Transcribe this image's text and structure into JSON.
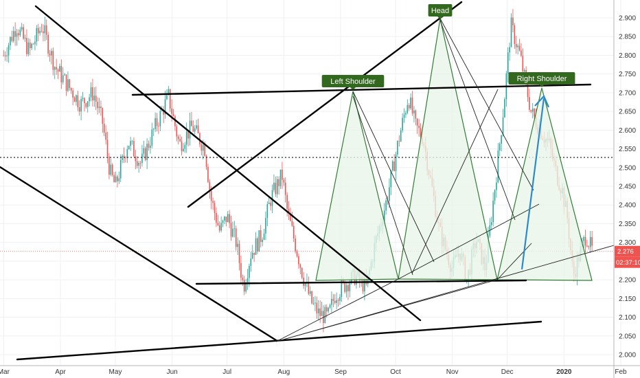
{
  "chart_data": {
    "type": "candlestick",
    "ticker_scale": "price",
    "colors": {
      "up": "#26a69a",
      "down": "#ef5350",
      "pattern_fill": "#e8f5e9",
      "pattern_stroke": "#2e7d32",
      "label_bg": "#33691e",
      "arrow": "#2a8ac9",
      "trendline": "#000000",
      "price_tag": "#ef5350",
      "time_tag": "#111111",
      "grid": "#eef0f3"
    },
    "x_labels": [
      "Mar",
      "Apr",
      "May",
      "Jun",
      "Jul",
      "Aug",
      "Sep",
      "Oct",
      "Nov",
      "Dec",
      "2020",
      "Feb"
    ],
    "y_ticks": [
      "2.000",
      "2.050",
      "2.100",
      "2.150",
      "2.200",
      "2.250",
      "2.300",
      "2.350",
      "2.400",
      "2.450",
      "2.500",
      "2.550",
      "2.600",
      "2.650",
      "2.700",
      "2.750",
      "2.800",
      "2.850",
      "2.900"
    ],
    "ylim": [
      1.985,
      2.935
    ],
    "last_price": "2.276",
    "countdown": "02:37:10",
    "dotted_level": 2.527,
    "pattern_labels": [
      "Left Shoulder",
      "Head",
      "Right Shoulder"
    ],
    "price_path": [
      [
        "2019-03-01",
        2.8
      ],
      [
        "2019-03-08",
        2.88
      ],
      [
        "2019-03-15",
        2.81
      ],
      [
        "2019-03-22",
        2.88
      ],
      [
        "2019-03-29",
        2.77
      ],
      [
        "2019-04-05",
        2.72
      ],
      [
        "2019-04-12",
        2.67
      ],
      [
        "2019-04-19",
        2.7
      ],
      [
        "2019-04-24",
        2.62
      ],
      [
        "2019-04-28",
        2.49
      ],
      [
        "2019-05-01",
        2.45
      ],
      [
        "2019-05-08",
        2.57
      ],
      [
        "2019-05-15",
        2.51
      ],
      [
        "2019-05-22",
        2.6
      ],
      [
        "2019-05-30",
        2.69
      ],
      [
        "2019-06-05",
        2.56
      ],
      [
        "2019-06-12",
        2.61
      ],
      [
        "2019-06-19",
        2.55
      ],
      [
        "2019-06-22",
        2.42
      ],
      [
        "2019-06-27",
        2.33
      ],
      [
        "2019-07-01",
        2.37
      ],
      [
        "2019-07-06",
        2.3
      ],
      [
        "2019-07-10",
        2.18
      ],
      [
        "2019-07-14",
        2.27
      ],
      [
        "2019-07-20",
        2.32
      ],
      [
        "2019-07-25",
        2.42
      ],
      [
        "2019-07-31",
        2.48
      ],
      [
        "2019-08-03",
        2.38
      ],
      [
        "2019-08-07",
        2.3
      ],
      [
        "2019-08-12",
        2.2
      ],
      [
        "2019-08-16",
        2.14
      ],
      [
        "2019-08-20",
        2.11
      ],
      [
        "2019-08-25",
        2.1
      ],
      [
        "2019-08-29",
        2.16
      ],
      [
        "2019-09-04",
        2.19
      ],
      [
        "2019-09-09",
        2.21
      ],
      [
        "2019-09-15",
        2.18
      ],
      [
        "2019-09-20",
        2.3
      ],
      [
        "2019-09-26",
        2.41
      ],
      [
        "2019-10-03",
        2.58
      ],
      [
        "2019-10-08",
        2.69
      ],
      [
        "2019-10-12",
        2.61
      ],
      [
        "2019-10-16",
        2.58
      ],
      [
        "2019-10-20",
        2.47
      ],
      [
        "2019-10-25",
        2.33
      ],
      [
        "2019-11-01",
        2.23
      ],
      [
        "2019-11-05",
        2.28
      ],
      [
        "2019-11-09",
        2.2
      ],
      [
        "2019-11-14",
        2.31
      ],
      [
        "2019-11-19",
        2.23
      ],
      [
        "2019-11-25",
        2.48
      ],
      [
        "2019-11-29",
        2.66
      ],
      [
        "2019-12-03",
        2.88
      ],
      [
        "2019-12-08",
        2.8
      ],
      [
        "2019-12-14",
        2.65
      ],
      [
        "2019-12-19",
        2.6
      ],
      [
        "2019-12-24",
        2.56
      ],
      [
        "2019-12-28",
        2.48
      ],
      [
        "2019-12-31",
        2.44
      ],
      [
        "2020-01-03",
        2.36
      ],
      [
        "2020-01-06",
        2.21
      ],
      [
        "2020-01-09",
        2.26
      ],
      [
        "2020-01-13",
        2.32
      ],
      [
        "2020-01-17",
        2.27
      ]
    ]
  }
}
